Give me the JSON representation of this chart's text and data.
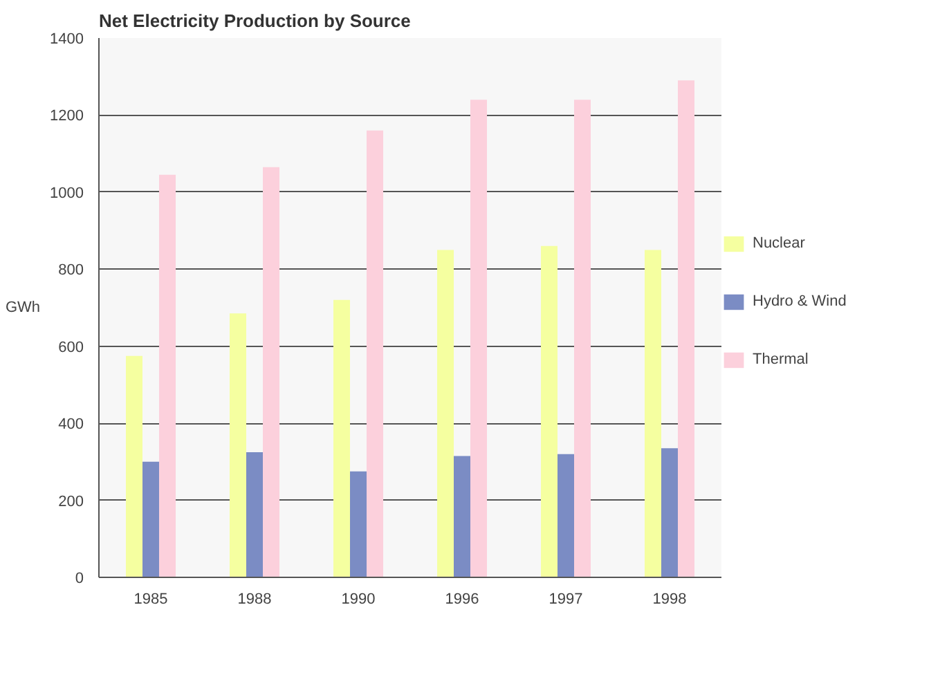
{
  "chart_data": {
    "type": "bar",
    "title": "Net Electricity Production by Source",
    "ylabel": "GWh",
    "categories": [
      "1985",
      "1988",
      "1990",
      "1996",
      "1997",
      "1998"
    ],
    "series": [
      {
        "name": "Nuclear",
        "color": "#f5ffa0",
        "values": [
          575,
          685,
          720,
          850,
          860,
          850
        ]
      },
      {
        "name": "Hydro & Wind",
        "color": "#7b8cc4",
        "values": [
          300,
          325,
          275,
          315,
          320,
          335
        ]
      },
      {
        "name": "Thermal",
        "color": "#fcd0dc",
        "values": [
          1045,
          1065,
          1160,
          1240,
          1240,
          1290
        ]
      }
    ],
    "ylim": [
      0,
      1400
    ],
    "yticks": [
      0,
      200,
      400,
      600,
      800,
      1000,
      1200,
      1400
    ],
    "grid": "y",
    "legend": "right"
  }
}
